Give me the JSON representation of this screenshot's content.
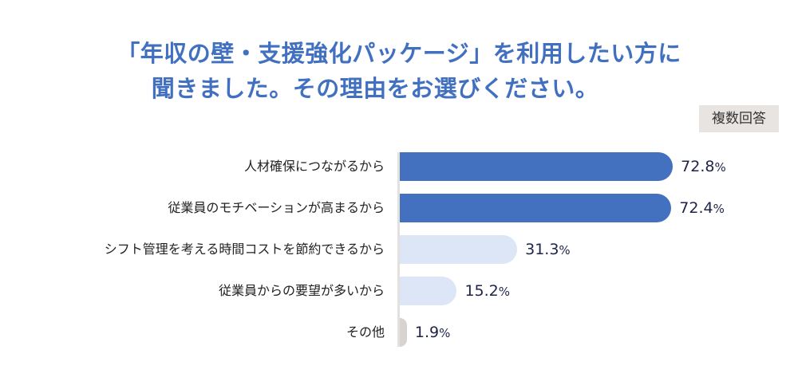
{
  "title_line1": "「年収の壁・支援強化パッケージ」を利用したい方に",
  "title_line2": "聞きました。その理由をお選びください。",
  "badge": "複数回答",
  "colors": {
    "title": "#4170c0",
    "top": "#4370bf",
    "mid": "#dce6f6",
    "other": "#d7d3d0"
  },
  "chart_data": {
    "type": "bar",
    "orientation": "horizontal",
    "unit": "%",
    "categories": [
      "人材確保につながるから",
      "従業員のモチベーションが高まるから",
      "シフト管理を考える時間コストを節約できるから",
      "従業員からの要望が多いから",
      "その他"
    ],
    "values": [
      72.8,
      72.4,
      31.3,
      15.2,
      1.9
    ],
    "labels": [
      "72.8",
      "72.4",
      "31.3",
      "15.2",
      "1.9"
    ],
    "color_groups": [
      "top",
      "top",
      "mid",
      "mid",
      "other"
    ],
    "xlim": [
      0,
      100
    ]
  }
}
